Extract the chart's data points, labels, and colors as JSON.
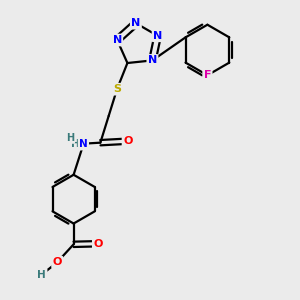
{
  "bg_color": "#ebebeb",
  "bond_color": "#000000",
  "bond_width": 1.6,
  "dbo": 0.11,
  "atom_colors": {
    "N": "#0000ff",
    "O": "#ff0000",
    "S": "#bbaa00",
    "F": "#dd00aa",
    "H": "#3a7a7a",
    "C": "#000000"
  },
  "fs": 8.0
}
